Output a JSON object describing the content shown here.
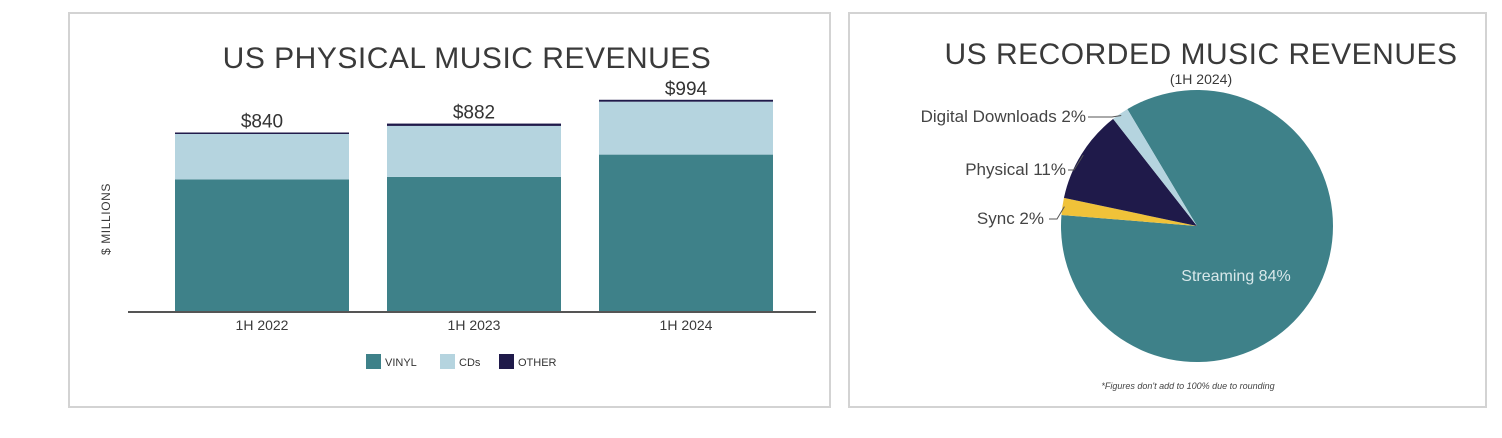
{
  "colors": {
    "vinyl": "#3e8189",
    "cds": "#b5d4df",
    "other": "#1f1a4a",
    "streaming": "#3e8189",
    "sync": "#f0c239",
    "physical": "#1f1a4a",
    "digital_downloads": "#b5d4df",
    "axis": "#555555"
  },
  "chart_data": [
    {
      "type": "bar",
      "stacked": true,
      "title": "US PHYSICAL MUSIC REVENUES",
      "xlabel": "",
      "ylabel": "$ MILLIONS",
      "categories": [
        "1H 2022",
        "1H 2023",
        "1H 2024"
      ],
      "series": [
        {
          "name": "VINYL",
          "values": [
            619,
            631,
            736
          ]
        },
        {
          "name": "CDs",
          "values": [
            214,
            240,
            249
          ]
        },
        {
          "name": "OTHER",
          "values": [
            7,
            11,
            9
          ]
        }
      ],
      "totals": [
        840,
        882,
        994
      ],
      "total_labels": [
        "$840",
        "$882",
        "$994"
      ],
      "ylim": [
        0,
        1000
      ],
      "grid": false,
      "legend": [
        "VINYL",
        "CDs",
        "OTHER"
      ],
      "legend_position": "bottom-center"
    },
    {
      "type": "pie",
      "title": "US RECORDED MUSIC REVENUES",
      "subtitle": "(1H 2024)",
      "slices": [
        {
          "name": "Streaming",
          "value": 84,
          "label": "Streaming 84%"
        },
        {
          "name": "Sync",
          "value": 2,
          "label": "Sync 2%"
        },
        {
          "name": "Physical",
          "value": 11,
          "label": "Physical 11%"
        },
        {
          "name": "Digital Downloads",
          "value": 2,
          "label": "Digital Downloads 2%"
        }
      ],
      "footnote": "*Figures don't add to 100% due to rounding"
    }
  ]
}
